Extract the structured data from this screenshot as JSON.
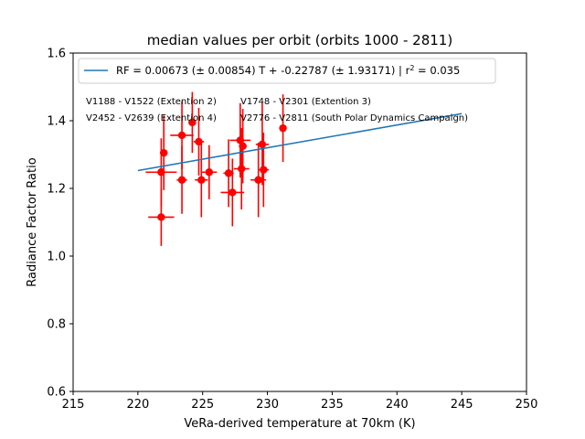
{
  "chart_data": {
    "type": "scatter",
    "title": "median values per orbit (orbits 1000 - 2811)",
    "xlabel": "VeRa-derived temperature at 70km (K)",
    "ylabel": "Radiance Factor Ratio",
    "xlim": [
      215,
      250
    ],
    "ylim": [
      0.6,
      1.6
    ],
    "xticks": [
      "215",
      "220",
      "225",
      "230",
      "235",
      "240",
      "245",
      "250"
    ],
    "yticks": [
      "0.6",
      "0.8",
      "1.0",
      "1.2",
      "1.4",
      "1.6"
    ],
    "grid": false,
    "legend_position": "top",
    "colors": {
      "fit": "#1f77b4",
      "points": "#ff0000",
      "extension2": "#800080",
      "extension3": "#000000",
      "extension4": "#808080",
      "south_polar": "#ff0000"
    },
    "fit_line": {
      "label_prefix": "RF = 0.00673 (± 0.00854) T + -0.22787 (± 1.93171) | r",
      "label_sup": "2",
      "label_suffix": " = 0.035",
      "slope": 0.00673,
      "intercept": -0.22787,
      "x_start": 220,
      "x_end": 245
    },
    "annotations": [
      {
        "id": "extension2",
        "text": "V1188 - V1522 (Extention 2)"
      },
      {
        "id": "extension3",
        "text": "V1748 - V2301 (Extention 3)"
      },
      {
        "id": "extension4",
        "text": "V2452 - V2639 (Extention 4)"
      },
      {
        "id": "south_polar",
        "text": "V2776 - V2811 (South Polar Dynamics Campaign)"
      }
    ],
    "points": [
      {
        "x": 221.8,
        "y": 1.115,
        "xerr": 1.0,
        "yerr": 0.085
      },
      {
        "x": 221.8,
        "y": 1.248,
        "xerr": 1.2,
        "yerr": 0.1
      },
      {
        "x": 222.0,
        "y": 1.305,
        "xerr": 0.3,
        "yerr": 0.11
      },
      {
        "x": 223.4,
        "y": 1.357,
        "xerr": 0.9,
        "yerr": 0.1
      },
      {
        "x": 223.4,
        "y": 1.225,
        "xerr": 0.4,
        "yerr": 0.1
      },
      {
        "x": 224.2,
        "y": 1.395,
        "xerr": 0.3,
        "yerr": 0.09
      },
      {
        "x": 224.7,
        "y": 1.338,
        "xerr": 0.4,
        "yerr": 0.1
      },
      {
        "x": 224.9,
        "y": 1.225,
        "xerr": 0.5,
        "yerr": 0.11
      },
      {
        "x": 225.5,
        "y": 1.248,
        "xerr": 0.6,
        "yerr": 0.08
      },
      {
        "x": 227.0,
        "y": 1.245,
        "xerr": 0.4,
        "yerr": 0.1
      },
      {
        "x": 227.3,
        "y": 1.188,
        "xerr": 0.9,
        "yerr": 0.1
      },
      {
        "x": 227.9,
        "y": 1.342,
        "xerr": 0.8,
        "yerr": 0.11
      },
      {
        "x": 228.0,
        "y": 1.258,
        "xerr": 0.6,
        "yerr": 0.12
      },
      {
        "x": 228.1,
        "y": 1.325,
        "xerr": 0.3,
        "yerr": 0.11
      },
      {
        "x": 229.3,
        "y": 1.225,
        "xerr": 0.6,
        "yerr": 0.11
      },
      {
        "x": 229.6,
        "y": 1.33,
        "xerr": 0.5,
        "yerr": 0.12
      },
      {
        "x": 229.7,
        "y": 1.255,
        "xerr": 0.4,
        "yerr": 0.11
      },
      {
        "x": 231.2,
        "y": 1.378,
        "xerr": 0.2,
        "yerr": 0.1
      }
    ]
  }
}
